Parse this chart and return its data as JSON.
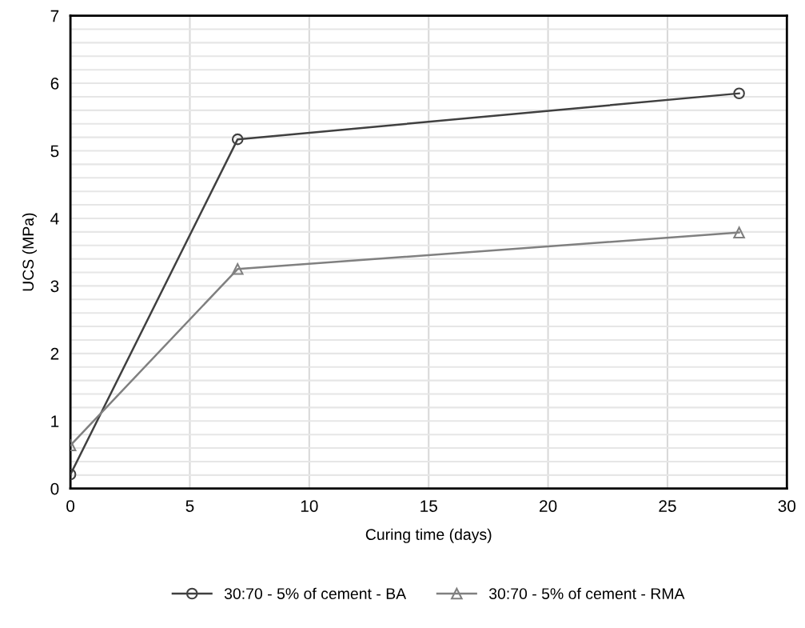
{
  "chart_data": {
    "type": "line",
    "xlabel": "Curing time (days)",
    "ylabel": "UCS (MPa)",
    "xlim": [
      0,
      30
    ],
    "xticks": [
      0,
      5,
      10,
      15,
      20,
      25,
      30
    ],
    "ylim": [
      0,
      7
    ],
    "yticks": [
      0,
      1,
      2,
      3,
      4,
      5,
      6,
      7
    ],
    "grid": true,
    "legend": "bottom",
    "line_style": "solid",
    "series": [
      {
        "name": "30:70 - 5% of cement - BA",
        "color": "#404040",
        "marker": "circle",
        "x": [
          0,
          7,
          28
        ],
        "values": [
          0.21,
          5.17,
          5.85
        ]
      },
      {
        "name": "30:70 - 5% of cement - RMA",
        "color": "#808080",
        "marker": "triangle",
        "x": [
          0,
          7,
          28
        ],
        "values": [
          0.64,
          3.25,
          3.79
        ]
      }
    ]
  }
}
